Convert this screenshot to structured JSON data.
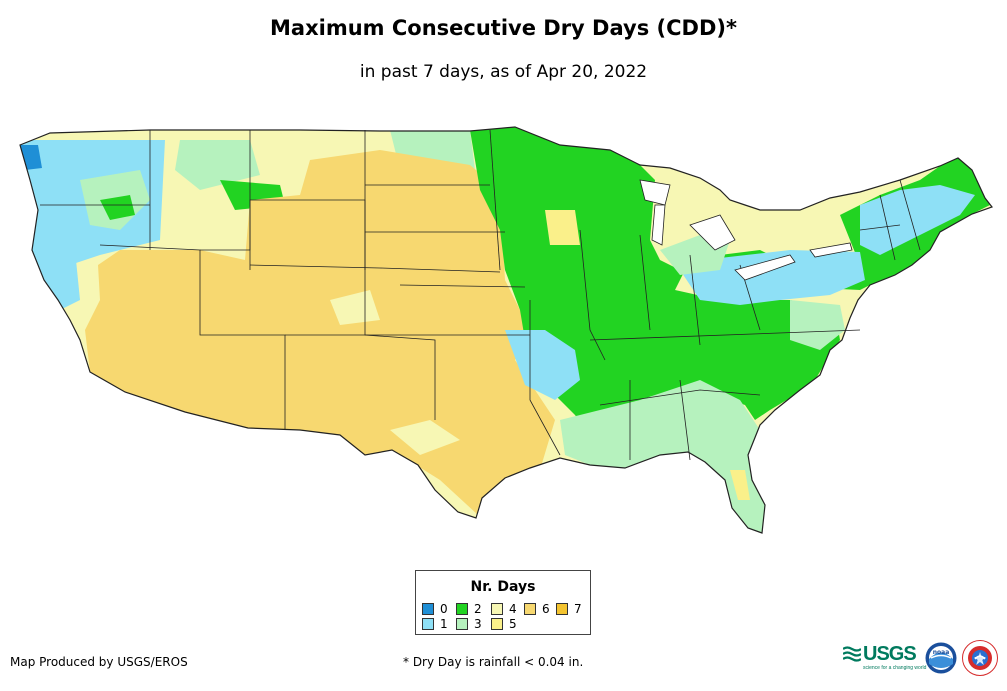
{
  "title": "Maximum Consecutive Dry Days (CDD)*",
  "subtitle": "in past 7 days, as of Apr 20, 2022",
  "legend": {
    "title": "Nr. Days",
    "items": [
      {
        "label": "0",
        "color": "#1f8fd6"
      },
      {
        "label": "1",
        "color": "#8ee0f6"
      },
      {
        "label": "2",
        "color": "#22d322"
      },
      {
        "label": "3",
        "color": "#b6f2be"
      },
      {
        "label": "4",
        "color": "#f7f7b4"
      },
      {
        "label": "5",
        "color": "#faf08a"
      },
      {
        "label": "6",
        "color": "#f7d870"
      },
      {
        "label": "7",
        "color": "#f4c430"
      }
    ]
  },
  "credit": "Map Produced by USGS/EROS",
  "footnote": "* Dry Day is rainfall < 0.04 in.",
  "logos": {
    "usgs_text": "USGS",
    "usgs_tagline": "science for a changing world",
    "noaa_text": "noaa"
  }
}
